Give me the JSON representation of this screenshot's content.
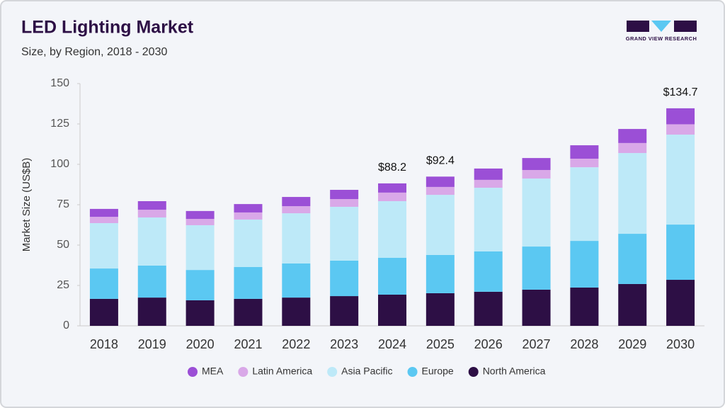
{
  "chart_data": {
    "type": "stacked_bar",
    "title": "LED Lighting Market",
    "subtitle": "Size, by Region, 2018 - 2030",
    "y_label": "Market Size (US$B)",
    "brand": "GRAND VIEW RESEARCH",
    "categories": [
      "2018",
      "2019",
      "2020",
      "2021",
      "2022",
      "2023",
      "2024",
      "2025",
      "2026",
      "2027",
      "2028",
      "2029",
      "2030"
    ],
    "series": [
      {
        "name": "North America",
        "color": "#2d0f45",
        "values": [
          16.7,
          17.5,
          15.8,
          16.7,
          17.5,
          18.4,
          19.3,
          20.2,
          21.1,
          22.4,
          23.7,
          25.9,
          28.5
        ]
      },
      {
        "name": "Europe",
        "color": "#5bc8f2",
        "values": [
          18.8,
          19.8,
          18.8,
          19.7,
          21.1,
          22.0,
          22.8,
          23.7,
          25.0,
          26.7,
          28.9,
          31.1,
          34.2
        ]
      },
      {
        "name": "Asia Pacific",
        "color": "#bde9f8",
        "values": [
          28.1,
          29.8,
          27.7,
          29.4,
          31.1,
          33.3,
          35.1,
          37.2,
          39.4,
          42.1,
          45.6,
          50.0,
          55.7
        ]
      },
      {
        "name": "Latin America",
        "color": "#d9a8e8",
        "values": [
          3.9,
          4.8,
          3.9,
          4.4,
          4.4,
          4.8,
          5.3,
          4.9,
          4.9,
          5.3,
          5.3,
          6.2,
          6.4
        ]
      },
      {
        "name": "MEA",
        "color": "#9b4fd6",
        "values": [
          4.9,
          5.3,
          4.9,
          5.2,
          5.7,
          5.7,
          5.7,
          6.4,
          7.0,
          7.4,
          8.3,
          8.7,
          9.9
        ]
      }
    ],
    "total_labels": [
      {
        "category": "2024",
        "value": 88.2,
        "label": "$88.2"
      },
      {
        "category": "2025",
        "value": 92.4,
        "label": "$92.4"
      },
      {
        "category": "2030",
        "value": 134.7,
        "label": "$134.7"
      }
    ],
    "ylim": [
      0,
      150
    ],
    "yticks": [
      0,
      25,
      50,
      75,
      100,
      125,
      150
    ],
    "legend": "bottom"
  }
}
